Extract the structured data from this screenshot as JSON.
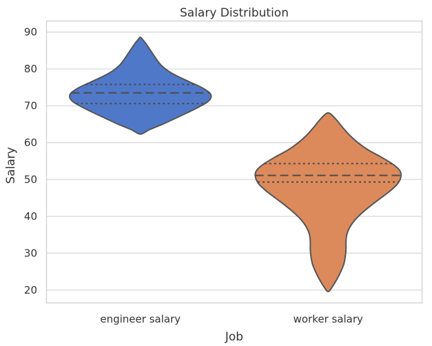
{
  "chart_data": {
    "type": "violin",
    "title": "Salary Distribution",
    "xlabel": "Job",
    "ylabel": "Salary",
    "categories": [
      "engineer salary",
      "worker salary"
    ],
    "ylim": [
      16.5,
      93
    ],
    "yticks": [
      20,
      30,
      40,
      50,
      60,
      70,
      80,
      90
    ],
    "grid": true,
    "inner": "quartile",
    "violins": [
      {
        "name": "engineer salary",
        "color": "#5078c8",
        "min": 62.3,
        "max": 88.6,
        "quartiles": {
          "q1": 70.6,
          "median": 73.5,
          "q3": 75.8
        },
        "density_profile": [
          [
            62.3,
            0.0
          ],
          [
            63.5,
            0.12
          ],
          [
            65.0,
            0.3
          ],
          [
            66.5,
            0.46
          ],
          [
            68.0,
            0.62
          ],
          [
            69.5,
            0.77
          ],
          [
            71.0,
            0.9
          ],
          [
            72.3,
            0.95
          ],
          [
            73.5,
            0.93
          ],
          [
            75.0,
            0.82
          ],
          [
            76.5,
            0.66
          ],
          [
            78.0,
            0.5
          ],
          [
            79.5,
            0.37
          ],
          [
            81.0,
            0.28
          ],
          [
            82.5,
            0.22
          ],
          [
            84.0,
            0.17
          ],
          [
            85.5,
            0.12
          ],
          [
            87.0,
            0.07
          ],
          [
            88.0,
            0.03
          ],
          [
            88.6,
            0.0
          ]
        ]
      },
      {
        "name": "worker salary",
        "color": "#dc8a5c",
        "min": 19.6,
        "max": 68.1,
        "quartiles": {
          "q1": 49.3,
          "median": 51.1,
          "q3": 54.3
        },
        "density_profile": [
          [
            19.6,
            0.0
          ],
          [
            21.0,
            0.06
          ],
          [
            23.0,
            0.12
          ],
          [
            25.0,
            0.17
          ],
          [
            27.0,
            0.21
          ],
          [
            29.0,
            0.23
          ],
          [
            31.0,
            0.24
          ],
          [
            33.0,
            0.24
          ],
          [
            35.0,
            0.25
          ],
          [
            37.0,
            0.29
          ],
          [
            39.0,
            0.36
          ],
          [
            41.0,
            0.46
          ],
          [
            43.0,
            0.58
          ],
          [
            45.0,
            0.71
          ],
          [
            47.0,
            0.84
          ],
          [
            49.0,
            0.94
          ],
          [
            51.0,
            0.98
          ],
          [
            52.5,
            0.96
          ],
          [
            54.0,
            0.88
          ],
          [
            56.0,
            0.72
          ],
          [
            58.0,
            0.54
          ],
          [
            60.0,
            0.4
          ],
          [
            62.0,
            0.29
          ],
          [
            64.0,
            0.2
          ],
          [
            66.0,
            0.12
          ],
          [
            67.5,
            0.05
          ],
          [
            68.1,
            0.0
          ]
        ]
      }
    ]
  }
}
